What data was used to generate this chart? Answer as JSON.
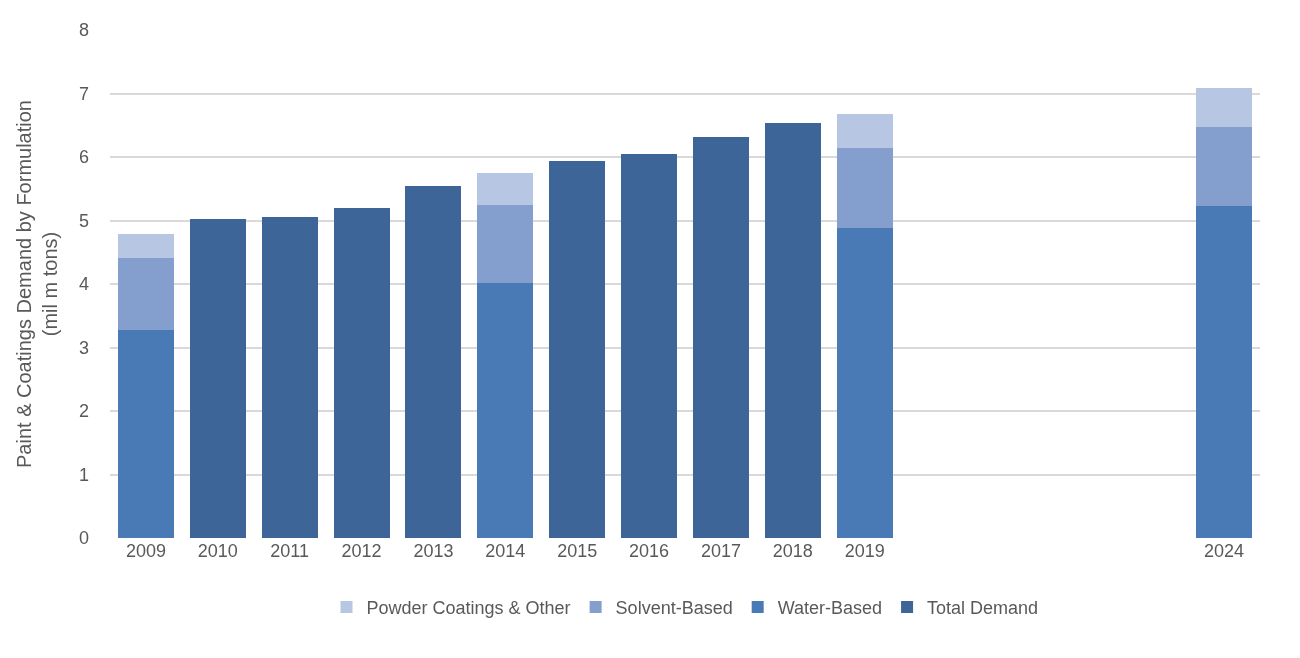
{
  "chart_data": {
    "type": "bar",
    "stacked": true,
    "ylabel": "Paint & Coatings Demand by Formulation\n(mil m tons)",
    "categories": [
      "2009",
      "2010",
      "2011",
      "2012",
      "2013",
      "2014",
      "2015",
      "2016",
      "2017",
      "2018",
      "2019",
      null,
      null,
      null,
      null,
      "2024"
    ],
    "series": [
      {
        "name": "Total Demand",
        "color": "#3d6597",
        "values": [
          null,
          5.02,
          5.06,
          5.2,
          5.54,
          null,
          5.93,
          6.05,
          6.31,
          6.54,
          null,
          null,
          null,
          null,
          null,
          null
        ]
      },
      {
        "name": "Water-Based",
        "color": "#4a7ab5",
        "values": [
          3.27,
          null,
          null,
          null,
          null,
          4.01,
          null,
          null,
          null,
          null,
          4.88,
          null,
          null,
          null,
          null,
          5.23
        ]
      },
      {
        "name": "Solvent-Based",
        "color": "#849fcd",
        "values": [
          1.14,
          null,
          null,
          null,
          null,
          1.24,
          null,
          null,
          null,
          null,
          1.26,
          null,
          null,
          null,
          null,
          1.24
        ]
      },
      {
        "name": "Powder Coatings & Other",
        "color": "#b7c6e2",
        "values": [
          0.37,
          null,
          null,
          null,
          null,
          0.5,
          null,
          null,
          null,
          null,
          0.54,
          null,
          null,
          null,
          null,
          0.62
        ]
      }
    ],
    "ylim": [
      0,
      8
    ],
    "yticks": [
      0,
      1,
      2,
      3,
      4,
      5,
      6,
      7,
      8
    ],
    "grid": "y",
    "legend": "bottom"
  }
}
